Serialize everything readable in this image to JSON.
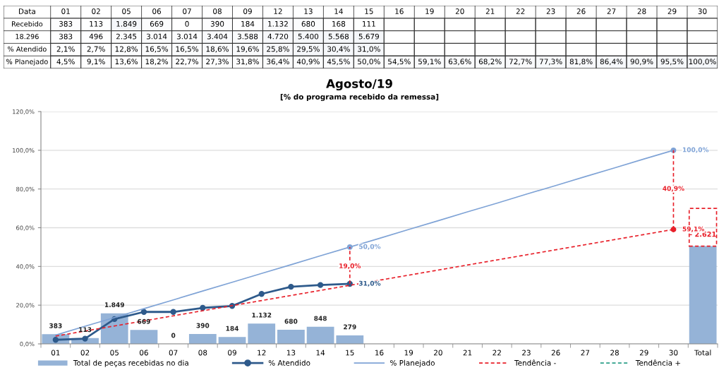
{
  "chart_data": [
    {
      "type": "heatmap",
      "ylabel": "Data",
      "categories": [
        "01",
        "02",
        "05",
        "06",
        "07",
        "08",
        "09",
        "12",
        "13",
        "14",
        "15",
        "16",
        "19",
        "20",
        "21",
        "22",
        "23",
        "26",
        "27",
        "28",
        "29",
        "30"
      ],
      "y_categories": [
        "Recebido",
        "18.296",
        "% Atendido",
        "% Planejado"
      ],
      "cells": [
        [
          383,
          113,
          1849,
          669,
          0,
          390,
          184,
          1132,
          680,
          168,
          111,
          null,
          null,
          null,
          null,
          null,
          null,
          null,
          null,
          null,
          null,
          null
        ],
        [
          383,
          496,
          2345,
          3014,
          3014,
          3404,
          3588,
          4720,
          5400,
          5568,
          5679,
          null,
          null,
          null,
          null,
          null,
          null,
          null,
          null,
          null,
          null,
          null
        ],
        [
          2.1,
          2.7,
          12.8,
          16.5,
          16.5,
          18.6,
          19.6,
          25.8,
          29.5,
          30.4,
          31.0,
          null,
          null,
          null,
          null,
          null,
          null,
          null,
          null,
          null,
          null,
          null
        ],
        [
          4.5,
          9.1,
          13.6,
          18.2,
          22.7,
          27.3,
          31.8,
          36.4,
          40.9,
          45.5,
          50.0,
          54.5,
          59.1,
          63.6,
          68.2,
          72.7,
          77.3,
          81.8,
          86.4,
          90.9,
          95.5,
          100.0
        ]
      ],
      "cell_labels": [
        [
          "383",
          "113",
          "1.849",
          "669",
          "0",
          "390",
          "184",
          "1.132",
          "680",
          "168",
          "111",
          null,
          null,
          null,
          null,
          null,
          null,
          null,
          null,
          null,
          null,
          null
        ],
        [
          "383",
          "496",
          "2.345",
          "3.014",
          "3.014",
          "3.404",
          "3.588",
          "4.720",
          "5.400",
          "5.568",
          "5.679",
          null,
          null,
          null,
          null,
          null,
          null,
          null,
          null,
          null,
          null,
          null
        ],
        [
          "2,1%",
          "2,7%",
          "12,8%",
          "16,5%",
          "16,5%",
          "18,6%",
          "19,6%",
          "25,8%",
          "29,5%",
          "30,4%",
          "31,0%",
          null,
          null,
          null,
          null,
          null,
          null,
          null,
          null,
          null,
          null,
          null
        ],
        [
          "4,5%",
          "9,1%",
          "13,6%",
          "18,2%",
          "22,7%",
          "27,3%",
          "31,8%",
          "36,4%",
          "40,9%",
          "45,5%",
          "50,0%",
          "54,5%",
          "59,1%",
          "63,6%",
          "68,2%",
          "72,7%",
          "77,3%",
          "81,8%",
          "86,4%",
          "90,9%",
          "95,5%",
          "100,0%"
        ]
      ]
    },
    {
      "type": "bar",
      "title": "Agosto/19",
      "subtitle": "[% do programa recebido da remessa]",
      "categories": [
        "01",
        "02",
        "05",
        "06",
        "07",
        "08",
        "09",
        "12",
        "13",
        "14",
        "15",
        "16",
        "19",
        "20",
        "21",
        "22",
        "23",
        "26",
        "27",
        "28",
        "29",
        "30",
        "Total"
      ],
      "ylim": [
        0,
        120
      ],
      "yticks": [
        {
          "value": 0,
          "label": "0,0%"
        },
        {
          "value": 20,
          "label": "20,0%"
        },
        {
          "value": 40,
          "label": "40,0%"
        },
        {
          "value": 60,
          "label": "60,0%"
        },
        {
          "value": 80,
          "label": "80,0%"
        },
        {
          "value": 100,
          "label": "100,0%"
        },
        {
          "value": 120,
          "label": "120,0%"
        }
      ],
      "grid": "y",
      "legend": "bottom",
      "stacked": true,
      "series": [
        {
          "type": "bar",
          "name": "Total de peças recebidas no dia",
          "color": "#95b3d7",
          "values": [
            5.0,
            3.0,
            15.8,
            7.2,
            0,
            5.1,
            3.6,
            10.5,
            7.3,
            8.8,
            4.4,
            null,
            null,
            null,
            null,
            null,
            null,
            null,
            null,
            null,
            null,
            null,
            50.5
          ]
        },
        {
          "type": "bar",
          "color": "#e8202a",
          "line_style": "dashed",
          "values": [
            null,
            null,
            null,
            null,
            null,
            null,
            null,
            null,
            null,
            null,
            null,
            null,
            null,
            null,
            null,
            null,
            null,
            null,
            null,
            null,
            null,
            null,
            19.5
          ]
        },
        {
          "type": "line",
          "name": "% Atendido",
          "color": "#2e5a8b",
          "marker": "circle",
          "line_style": "solid",
          "values": [
            2.1,
            2.7,
            12.8,
            16.5,
            16.5,
            18.6,
            19.6,
            25.8,
            29.5,
            30.4,
            31.0,
            null,
            null,
            null,
            null,
            null,
            null,
            null,
            null,
            null,
            null,
            null,
            null
          ],
          "value_labels": [
            null,
            null,
            null,
            null,
            null,
            null,
            null,
            null,
            null,
            null,
            "31,0%",
            null,
            null,
            null,
            null,
            null,
            null,
            null,
            null,
            null,
            null,
            null,
            null
          ]
        },
        {
          "type": "line",
          "name": "% Planejado",
          "color": "#7fa3d6",
          "line_style": "solid",
          "values": [
            4.5,
            9.1,
            13.6,
            18.2,
            22.7,
            27.3,
            31.8,
            36.4,
            40.9,
            45.5,
            50.0,
            54.5,
            59.1,
            63.6,
            68.2,
            72.7,
            77.3,
            81.8,
            86.4,
            90.9,
            95.5,
            100.0,
            null
          ]
        },
        {
          "type": "line",
          "name": "Tendência -",
          "color": "#e8202a",
          "line_style": "dashed",
          "x": [
            "01",
            "30"
          ],
          "values": [
            4.0,
            59.1
          ]
        },
        {
          "type": "line",
          "name": "Tendência +",
          "color": "#2ca089",
          "line_style": "dashed",
          "values": [
            null,
            null,
            null,
            null,
            null,
            null,
            null,
            null,
            null,
            null,
            null,
            null,
            null,
            null,
            null,
            null,
            null,
            null,
            null,
            null,
            null,
            null,
            null
          ]
        },
        {
          "type": "scatter",
          "color": "#7fa3d6",
          "marker": "circle",
          "x": [
            "15",
            "30"
          ],
          "values": [
            50.0,
            100.0
          ],
          "value_labels": [
            "50,0%",
            "100,0%"
          ]
        },
        {
          "type": "scatter",
          "color": "#e8202a",
          "marker": "circle",
          "x": [
            "30"
          ],
          "values": [
            59.1
          ],
          "value_labels": [
            "59,1%"
          ]
        },
        {
          "type": "line",
          "color": "#e8202a",
          "line_style": "dashed",
          "x": [
            "15",
            "15"
          ],
          "values": [
            31.0,
            50.0
          ]
        },
        {
          "type": "line",
          "color": "#e8202a",
          "line_style": "dashed",
          "x": [
            "30",
            "30"
          ],
          "values": [
            59.1,
            100.0
          ]
        }
      ],
      "annotations": [
        {
          "text": "19,0%",
          "x": "15",
          "y": 40
        },
        {
          "text": "40,9%",
          "x": "30",
          "y": 80
        },
        {
          "text": "383",
          "x": "01",
          "y": 5.0
        },
        {
          "text": "113",
          "x": "02",
          "y": 3.0
        },
        {
          "text": "1.849",
          "x": "05",
          "y": 15.8
        },
        {
          "text": "669",
          "x": "06",
          "y": 7.2
        },
        {
          "text": "0",
          "x": "07",
          "y": 0
        },
        {
          "text": "390",
          "x": "08",
          "y": 5.1
        },
        {
          "text": "184",
          "x": "09",
          "y": 3.6
        },
        {
          "text": "1.132",
          "x": "12",
          "y": 10.5
        },
        {
          "text": "680",
          "x": "13",
          "y": 7.3
        },
        {
          "text": "848",
          "x": "14",
          "y": 8.8
        },
        {
          "text": "279",
          "x": "15",
          "y": 4.4
        },
        "- 2.621"
      ]
    }
  ]
}
